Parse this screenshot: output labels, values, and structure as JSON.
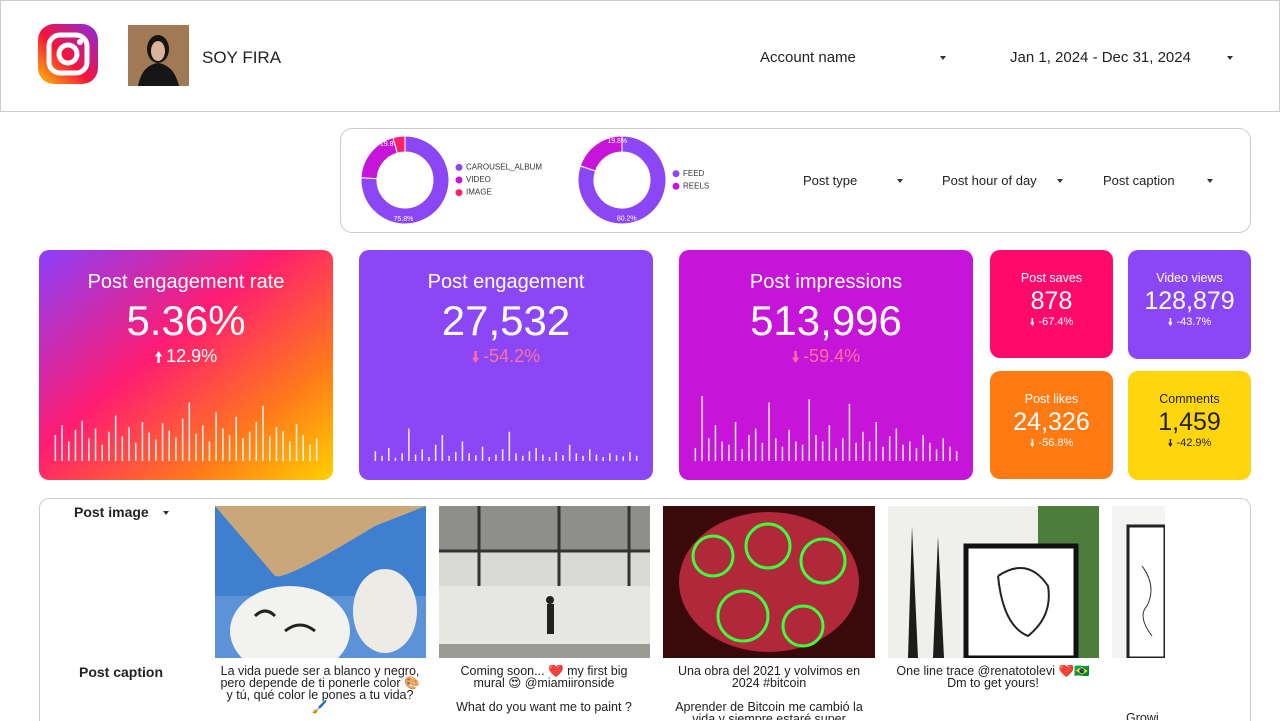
{
  "header": {
    "title": "SOY FIRA",
    "account_filter": "Account name",
    "date_range": "Jan 1, 2024 - Dec 31, 2024"
  },
  "filters": [
    "Post type",
    "Post hour of day",
    "Post caption"
  ],
  "chart_data": [
    {
      "type": "pie",
      "donut": true,
      "categories": [
        "CAROUSEL_ALBUM",
        "VIDEO",
        "IMAGE"
      ],
      "values": [
        75.8,
        19.8,
        4.4
      ],
      "value_labels": [
        "75.8%",
        "19.8%",
        null
      ],
      "colors": [
        "#8b47f5",
        "#c614d8",
        "#ff1f6b"
      ]
    },
    {
      "type": "pie",
      "donut": true,
      "categories": [
        "FEED",
        "REELS"
      ],
      "values": [
        80.2,
        19.8
      ],
      "value_labels": [
        "80.2%",
        "19.8%"
      ],
      "colors": [
        "#8b47f5",
        "#c614d8"
      ]
    }
  ],
  "kpis": [
    {
      "title": "Post engagement rate",
      "value": "5.36%",
      "change": "12.9%",
      "sparkline": [
        40,
        55,
        30,
        48,
        62,
        35,
        50,
        25,
        45,
        70,
        38,
        52,
        28,
        60,
        44,
        33,
        58,
        47,
        36,
        65,
        90,
        42,
        55,
        30,
        75,
        50,
        40,
        68,
        35,
        45,
        60,
        85,
        38,
        52,
        46,
        30,
        57,
        40,
        25,
        35
      ]
    },
    {
      "title": "Post engagement",
      "value": "27,532",
      "change": "-54.2%",
      "sparkline": [
        15,
        8,
        20,
        5,
        12,
        50,
        10,
        18,
        6,
        25,
        40,
        8,
        14,
        30,
        12,
        9,
        22,
        6,
        10,
        18,
        45,
        12,
        8,
        15,
        20,
        10,
        6,
        14,
        9,
        25,
        12,
        8,
        18,
        10,
        6,
        12,
        9,
        7,
        14,
        8
      ]
    },
    {
      "title": "Post impressions",
      "value": "513,996",
      "change": "-59.4%",
      "sparkline": [
        20,
        100,
        35,
        55,
        30,
        25,
        60,
        18,
        40,
        50,
        28,
        90,
        35,
        22,
        48,
        30,
        25,
        95,
        40,
        30,
        55,
        20,
        35,
        88,
        28,
        45,
        30,
        60,
        22,
        38,
        50,
        25,
        30,
        20,
        40,
        28,
        18,
        35,
        22,
        15
      ]
    },
    {
      "title": "Post saves",
      "value": "878",
      "change": "-67.4%"
    },
    {
      "title": "Video views",
      "value": "128,879",
      "change": "-43.7%"
    },
    {
      "title": "Post likes",
      "value": "24,326",
      "change": "-56.8%"
    },
    {
      "title": "Comments",
      "value": "1,459",
      "change": "-42.9%"
    }
  ],
  "posts": {
    "image_label": "Post image",
    "caption_label": "Post caption",
    "captions": [
      "La vida puede ser a blanco y negro, pero depende de ti ponerle color 🎨 y tú, qué color le pones a tu vida? 🖌️",
      "Coming soon... ❤️ my first big mural 😍 @miamiironside\n\nWhat do you want me to paint ?",
      "Una obra del 2021 y volvimos en 2024 #bitcoin\n\nAprender de Bitcoin me cambió la vida y siempre estaré super",
      "One line trace @renatotolevi ❤️🇧🇷 Dm to get yours!",
      "Growi"
    ]
  }
}
